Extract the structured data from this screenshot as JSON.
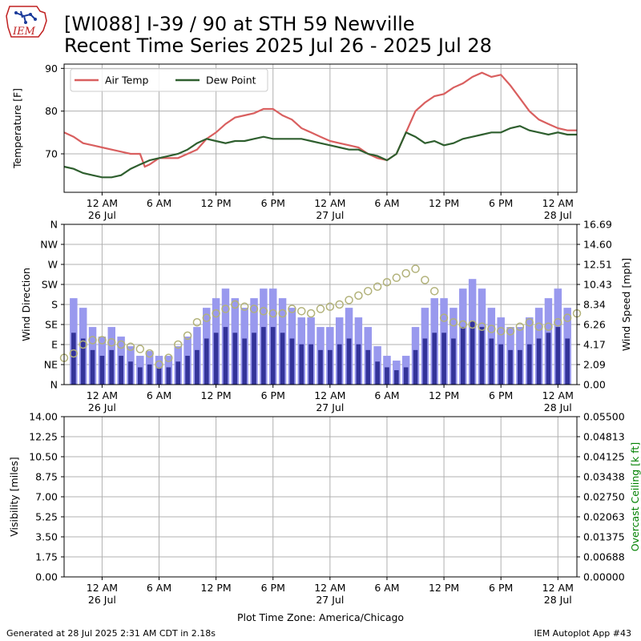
{
  "header": {
    "title_line1": "[WI088] I-39 / 90 at STH 59 Newville",
    "title_line2": "Recent Time Series 2025 Jul 26 - 2025 Jul 28",
    "logo_text": "IEM"
  },
  "footer": {
    "generated": "Generated at 28 Jul 2025 2:31 AM CDT in 2.18s",
    "app": "IEM Autoplot App #43"
  },
  "colors": {
    "air_temp": "#d95f5f",
    "dew_point": "#2f5f2f",
    "wind_speed": "#9999ee",
    "wind_speed_dark": "#333399",
    "wind_direction": "#b2b27a",
    "ceiling_label": "#008000",
    "grid": "#b0b0b0"
  },
  "x_axis": {
    "ticks": [
      {
        "t": 4,
        "label": "12 AM",
        "date": "26 Jul"
      },
      {
        "t": 10,
        "label": "6 AM",
        "date": ""
      },
      {
        "t": 16,
        "label": "12 PM",
        "date": ""
      },
      {
        "t": 22,
        "label": "6 PM",
        "date": ""
      },
      {
        "t": 28,
        "label": "12 AM",
        "date": "27 Jul"
      },
      {
        "t": 34,
        "label": "6 AM",
        "date": ""
      },
      {
        "t": 40,
        "label": "12 PM",
        "date": ""
      },
      {
        "t": 46,
        "label": "6 PM",
        "date": ""
      },
      {
        "t": 52,
        "label": "12 AM",
        "date": "28 Jul"
      }
    ],
    "timezone_label": "Plot Time Zone: America/Chicago"
  },
  "chart_data": [
    {
      "type": "line",
      "ylabel": "Temperature [F]",
      "ylim": [
        61,
        91
      ],
      "yticks": [
        70,
        80,
        90
      ],
      "grid": true,
      "legend": "top-left",
      "x": [
        0,
        1,
        2,
        3,
        4,
        5,
        6,
        7,
        8,
        8.5,
        9,
        10,
        11,
        12,
        13,
        14,
        15,
        16,
        17,
        18,
        19,
        20,
        21,
        22,
        23,
        24,
        25,
        26,
        27,
        28,
        29,
        30,
        31,
        32,
        33,
        34,
        35,
        36,
        37,
        38,
        39,
        40,
        41,
        42,
        43,
        44,
        45,
        46,
        47,
        48,
        49,
        50,
        51,
        52,
        53,
        54
      ],
      "series": [
        {
          "name": "Air Temp",
          "values": [
            75,
            74,
            72.5,
            72,
            71.5,
            71,
            70.5,
            70,
            70,
            67,
            67.5,
            69,
            69,
            69,
            70,
            71,
            73.5,
            75,
            77,
            78.5,
            79,
            79.5,
            80.5,
            80.5,
            79,
            78,
            76,
            75,
            74,
            73,
            72.5,
            72,
            71.5,
            70,
            69,
            68.5,
            70,
            75,
            80,
            82,
            83.5,
            84,
            85.5,
            86.5,
            88,
            89,
            88,
            88.5,
            86,
            83,
            80,
            78,
            77,
            76,
            75.5,
            75.5
          ]
        },
        {
          "name": "Dew Point",
          "values": [
            67,
            66.5,
            65.5,
            65,
            64.5,
            64.5,
            65,
            66.5,
            67.5,
            68,
            68.5,
            69,
            69.5,
            70,
            71,
            72.5,
            73.5,
            73,
            72.5,
            73,
            73,
            73.5,
            74,
            73.5,
            73.5,
            73.5,
            73.5,
            73,
            72.5,
            72,
            71.5,
            71,
            71,
            70,
            69.5,
            68.5,
            70,
            75,
            74,
            72.5,
            73,
            72,
            72.5,
            73.5,
            74,
            74.5,
            75,
            75,
            76,
            76.5,
            75.5,
            75,
            74.5,
            75,
            74.5,
            74.5
          ]
        }
      ]
    },
    {
      "type": "bar",
      "ylabel": "Wind Direction",
      "y2label": "Wind Speed [mph]",
      "direction_ticks": [
        "N",
        "NE",
        "E",
        "SE",
        "S",
        "SW",
        "W",
        "NW",
        "N"
      ],
      "speed_ticks": [
        "0.00",
        "2.09",
        "4.17",
        "6.26",
        "8.34",
        "10.43",
        "12.51",
        "14.60",
        "16.69"
      ],
      "speed_ylim": [
        0,
        16.69
      ],
      "direction_ylim": [
        0,
        360
      ],
      "grid": true,
      "x": [
        0,
        1,
        2,
        3,
        4,
        5,
        6,
        7,
        8,
        9,
        10,
        11,
        12,
        13,
        14,
        15,
        16,
        17,
        18,
        19,
        20,
        21,
        22,
        23,
        24,
        25,
        26,
        27,
        28,
        29,
        30,
        31,
        32,
        33,
        34,
        35,
        36,
        37,
        38,
        39,
        40,
        41,
        42,
        43,
        44,
        45,
        46,
        47,
        48,
        49,
        50,
        51,
        52,
        53,
        54
      ],
      "series": [
        {
          "name": "Wind Speed",
          "values": [
            8,
            9,
            8,
            6,
            5,
            6,
            5,
            4,
            3,
            3.5,
            3,
            3,
            4,
            5,
            6,
            8,
            9,
            10,
            9,
            8,
            9,
            10,
            10,
            9,
            8,
            7,
            7,
            6,
            6,
            7,
            8,
            7,
            6,
            4,
            3,
            2.5,
            3,
            6,
            8,
            9,
            9,
            8,
            10,
            11,
            10,
            8,
            7,
            6,
            6,
            7,
            8,
            9,
            10,
            8,
            7
          ]
        },
        {
          "name": "Wind Direction",
          "values": [
            60,
            70,
            90,
            100,
            100,
            95,
            90,
            85,
            80,
            70,
            45,
            60,
            90,
            110,
            140,
            150,
            160,
            170,
            180,
            175,
            170,
            165,
            160,
            160,
            170,
            165,
            160,
            170,
            175,
            180,
            190,
            200,
            210,
            220,
            230,
            240,
            250,
            260,
            235,
            210,
            150,
            140,
            135,
            135,
            130,
            125,
            120,
            120,
            130,
            140,
            130,
            130,
            140,
            150,
            160
          ]
        }
      ]
    },
    {
      "type": "line",
      "ylabel": "Visibility [miles]",
      "y2label": "Overcast Ceiling [k ft]",
      "ylim": [
        0,
        14
      ],
      "y2lim": [
        0,
        0.055
      ],
      "yticks": [
        "0.00",
        "1.75",
        "3.50",
        "5.25",
        "7.00",
        "8.75",
        "10.50",
        "12.25",
        "14.00"
      ],
      "y2ticks": [
        "0.00000",
        "0.00688",
        "0.01375",
        "0.02063",
        "0.02750",
        "0.03438",
        "0.04125",
        "0.04813",
        "0.05500"
      ],
      "grid": true,
      "series": []
    }
  ]
}
